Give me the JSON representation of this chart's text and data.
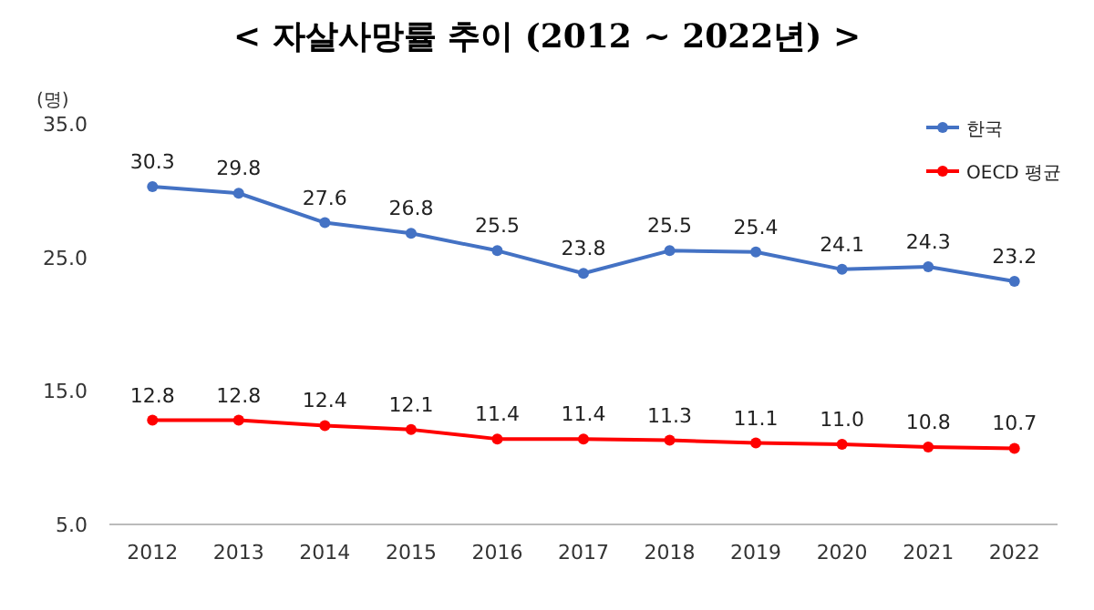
{
  "chart_data": {
    "type": "line",
    "title": "< 자살사망률 추이 (2012 ~ 2022년) >",
    "ylabel": "(명)",
    "categories": [
      "2012",
      "2013",
      "2014",
      "2015",
      "2016",
      "2017",
      "2018",
      "2019",
      "2020",
      "2021",
      "2022"
    ],
    "ylim": [
      5,
      35
    ],
    "yticks": [
      {
        "value": 5,
        "label": "5.0"
      },
      {
        "value": 15,
        "label": "15.0"
      },
      {
        "value": 25,
        "label": "25.0"
      },
      {
        "value": 35,
        "label": "35.0"
      }
    ],
    "legend": "top right",
    "marker": "circle",
    "series": [
      {
        "name": "한국",
        "color": "#4472c4",
        "values": [
          30.3,
          29.8,
          27.6,
          26.8,
          25.5,
          23.8,
          25.5,
          25.4,
          24.1,
          24.3,
          23.2
        ],
        "value_labels": [
          "30.3",
          "29.8",
          "27.6",
          "26.8",
          "25.5",
          "23.8",
          "25.5",
          "25.4",
          "24.1",
          "24.3",
          "23.2"
        ]
      },
      {
        "name": "OECD 평균",
        "color": "#ff0000",
        "values": [
          12.8,
          12.8,
          12.4,
          12.1,
          11.4,
          11.4,
          11.3,
          11.1,
          11.0,
          10.8,
          10.7
        ],
        "value_labels": [
          "12.8",
          "12.8",
          "12.4",
          "12.1",
          "11.4",
          "11.4",
          "11.3",
          "11.1",
          "11.0",
          "10.8",
          "10.7"
        ]
      }
    ]
  }
}
